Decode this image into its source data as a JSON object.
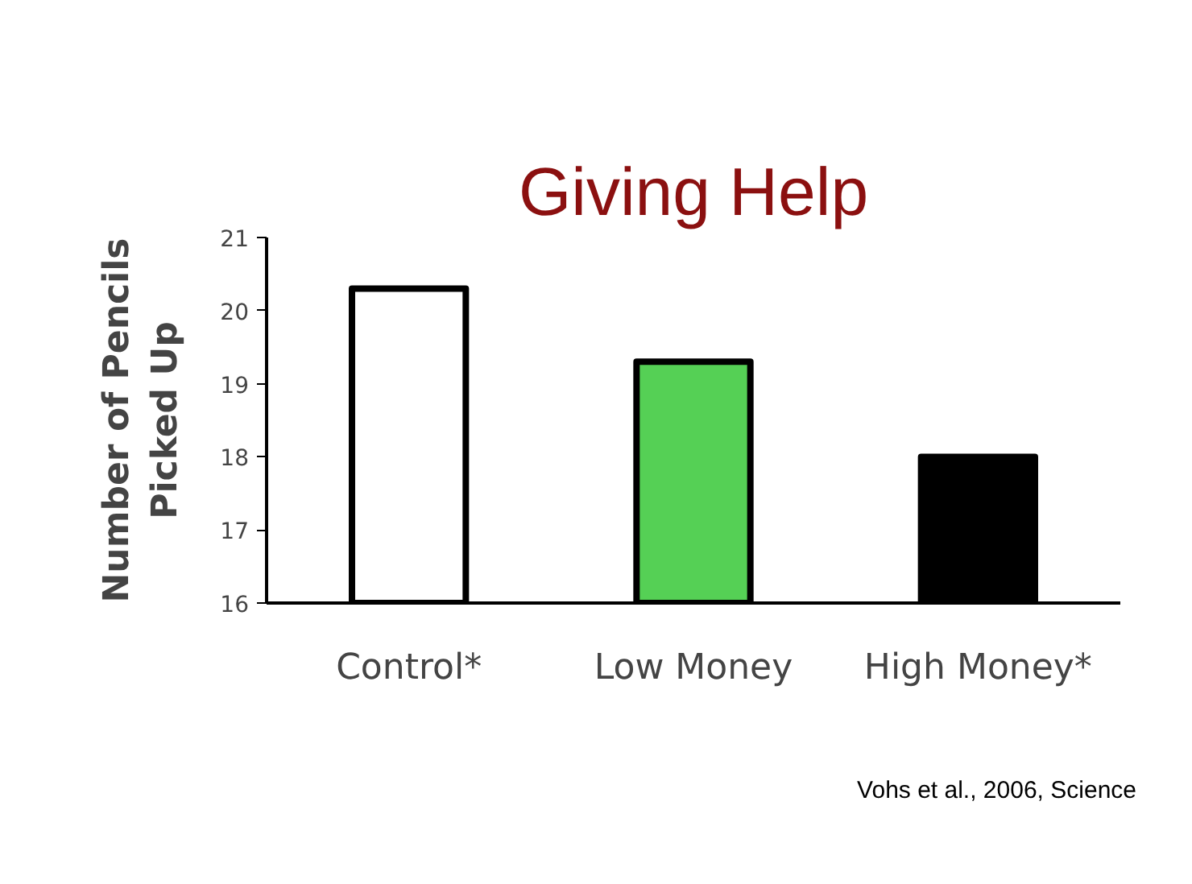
{
  "chart_data": {
    "type": "bar",
    "title": "Giving Help",
    "ylabel": "Number of Pencils Picked Up",
    "categories": [
      "Control*",
      "Low Money",
      "High Money*"
    ],
    "values": [
      20.3,
      19.3,
      18.0
    ],
    "colors": [
      "#ffffff",
      "#55d055",
      "#000000"
    ],
    "ylim": [
      16,
      21
    ],
    "yticks": [
      16,
      17,
      18,
      19,
      20,
      21
    ],
    "grid": false,
    "annotations": [
      "Vohs et al., 2006, Science"
    ]
  }
}
